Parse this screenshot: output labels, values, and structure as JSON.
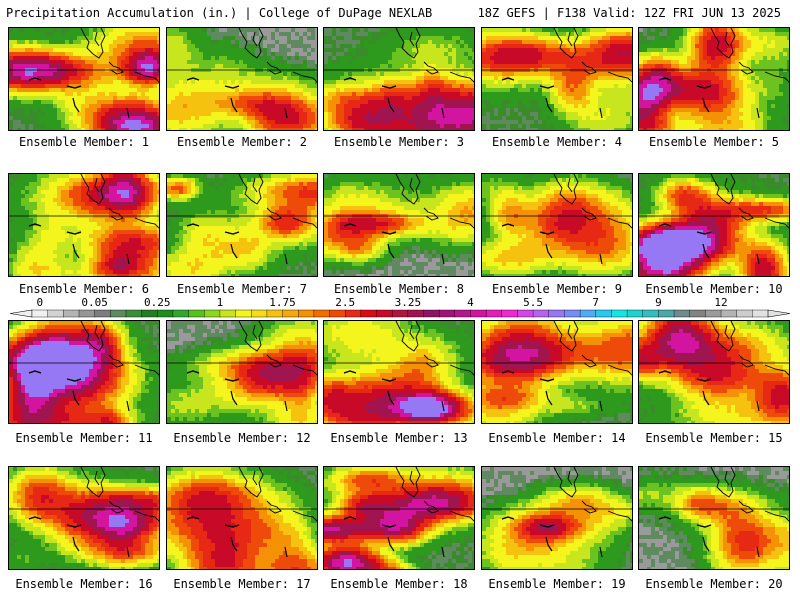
{
  "header": {
    "left": "Precipitation Accumulation (in.) | College of DuPage NEXLAB",
    "right": "18Z GEFS | F138 Valid: 12Z FRI JUN 13 2025"
  },
  "panels": [
    {
      "label": "Ensemble Member: 1",
      "seed": 11,
      "wet": 0.78,
      "max": 5.0
    },
    {
      "label": "Ensemble Member: 2",
      "seed": 23,
      "wet": 0.6,
      "max": 1.8
    },
    {
      "label": "Ensemble Member: 3",
      "seed": 37,
      "wet": 0.7,
      "max": 3.3
    },
    {
      "label": "Ensemble Member: 4",
      "seed": 41,
      "wet": 0.74,
      "max": 3.0
    },
    {
      "label": "Ensemble Member: 5",
      "seed": 53,
      "wet": 0.66,
      "max": 5.2
    },
    {
      "label": "Ensemble Member: 6",
      "seed": 67,
      "wet": 0.72,
      "max": 4.3
    },
    {
      "label": "Ensemble Member: 7",
      "seed": 71,
      "wet": 0.7,
      "max": 3.0
    },
    {
      "label": "Ensemble Member: 8",
      "seed": 83,
      "wet": 0.62,
      "max": 2.4
    },
    {
      "label": "Ensemble Member: 9",
      "seed": 97,
      "wet": 0.56,
      "max": 2.0
    },
    {
      "label": "Ensemble Member: 10",
      "seed": 101,
      "wet": 0.8,
      "max": 6.0
    },
    {
      "label": "Ensemble Member: 11",
      "seed": 113,
      "wet": 0.74,
      "max": 5.5
    },
    {
      "label": "Ensemble Member: 12",
      "seed": 127,
      "wet": 0.62,
      "max": 2.4
    },
    {
      "label": "Ensemble Member: 13",
      "seed": 131,
      "wet": 0.7,
      "max": 3.4
    },
    {
      "label": "Ensemble Member: 14",
      "seed": 149,
      "wet": 0.72,
      "max": 3.0
    },
    {
      "label": "Ensemble Member: 15",
      "seed": 151,
      "wet": 0.76,
      "max": 4.0
    },
    {
      "label": "Ensemble Member: 16",
      "seed": 163,
      "wet": 0.76,
      "max": 3.0
    },
    {
      "label": "Ensemble Member: 17",
      "seed": 173,
      "wet": 0.72,
      "max": 3.0
    },
    {
      "label": "Ensemble Member: 18",
      "seed": 181,
      "wet": 0.72,
      "max": 6.0
    },
    {
      "label": "Ensemble Member: 19",
      "seed": 191,
      "wet": 0.6,
      "max": 2.2
    },
    {
      "label": "Ensemble Member: 20",
      "seed": 197,
      "wet": 0.64,
      "max": 2.2
    }
  ],
  "colorbar": {
    "labels": [
      "0",
      "0.05",
      "0.25",
      "1",
      "1.75",
      "2.5",
      "3.25",
      "4",
      "5.5",
      "7",
      "9",
      "12"
    ],
    "label_index": [
      0,
      4,
      8,
      12,
      16,
      20,
      24,
      28,
      32,
      36,
      40,
      44
    ],
    "colors": [
      "#f0f0f0",
      "#d2d2d2",
      "#b4b4b4",
      "#969696",
      "#7d7d7d",
      "#5f8a5f",
      "#3c8c3c",
      "#237d23",
      "#1e8c1e",
      "#2ea82e",
      "#55c21e",
      "#8fd61e",
      "#c8e61e",
      "#f5f51e",
      "#f5dc14",
      "#f5c30f",
      "#f5aa0a",
      "#f59105",
      "#f06e00",
      "#ee4b0a",
      "#e62814",
      "#dc0a14",
      "#c80a28",
      "#b4143c",
      "#a01450",
      "#8c1464",
      "#a01478",
      "#b9148c",
      "#d214a0",
      "#e61eb9",
      "#f028d2",
      "#d246e6",
      "#b464f0",
      "#9678f5",
      "#788cf5",
      "#50aaf5",
      "#28c8f0",
      "#14e6e6",
      "#1ed2d2",
      "#32bebe",
      "#46aaaa",
      "#6e8c8c",
      "#828282",
      "#9b9b9b",
      "#b4b4b4",
      "#cdcdcd",
      "#e1e1e1"
    ]
  }
}
